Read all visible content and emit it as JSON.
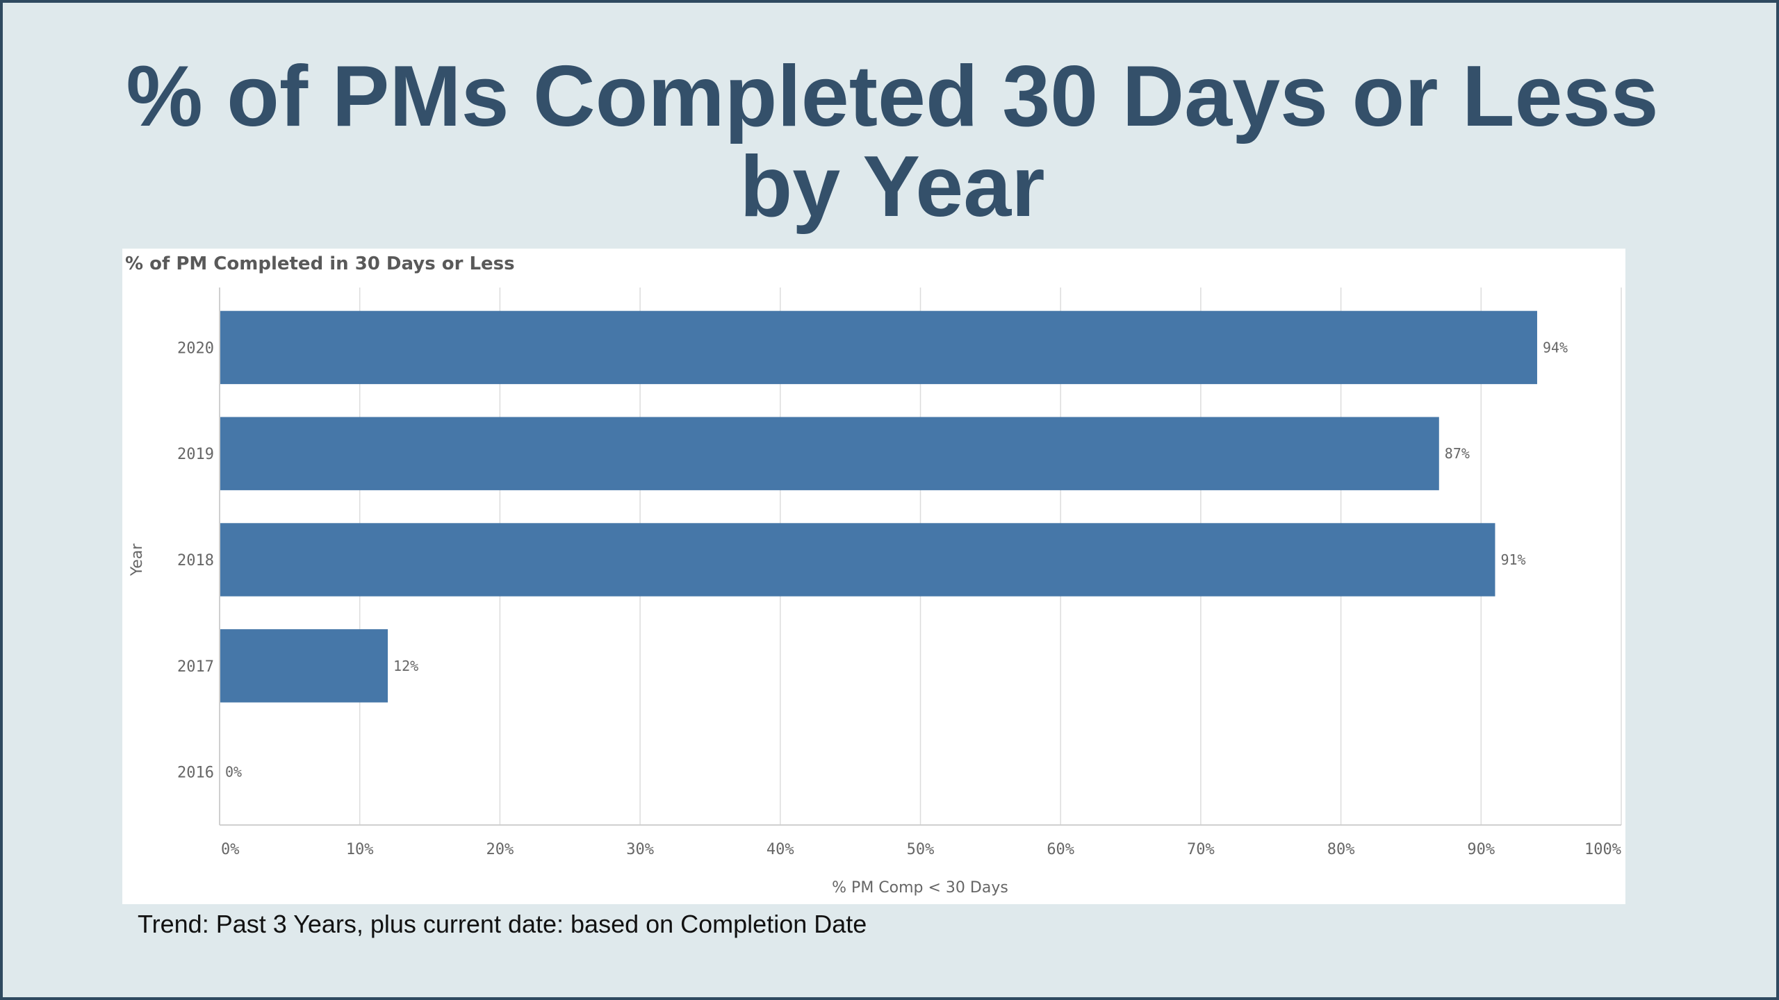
{
  "slide": {
    "title": "% of PMs Completed 30 Days or Less by Year",
    "footnote": "Trend: Past 3 Years, plus current date: based on Completion Date"
  },
  "chart_data": {
    "type": "bar",
    "orientation": "horizontal",
    "title": "% of PM Completed in 30 Days or Less",
    "xlabel": "% PM Comp < 30 Days",
    "ylabel": "Year",
    "categories": [
      "2020",
      "2019",
      "2018",
      "2017",
      "2016"
    ],
    "values": [
      94,
      87,
      91,
      12,
      0
    ],
    "data_labels": [
      "94%",
      "87%",
      "91%",
      "12%",
      "0%"
    ],
    "xlim": [
      0,
      100
    ],
    "x_ticks": [
      "0%",
      "10%",
      "20%",
      "30%",
      "40%",
      "50%",
      "60%",
      "70%",
      "80%",
      "90%",
      "100%"
    ],
    "grid": true,
    "bar_color": "#4677a8"
  }
}
